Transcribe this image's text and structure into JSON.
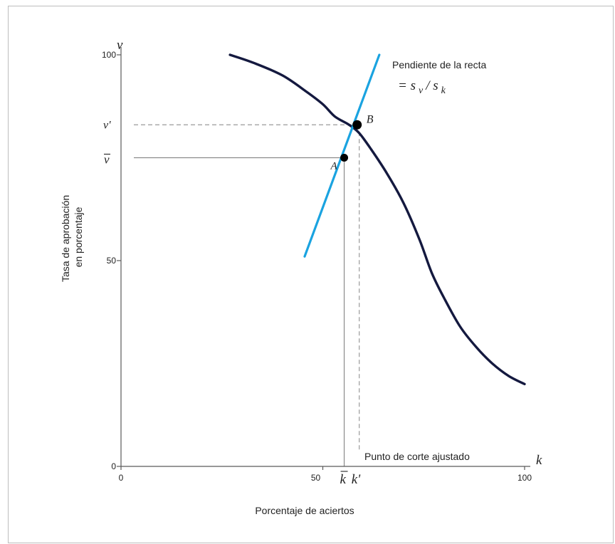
{
  "chart_data": {
    "type": "line",
    "xlabel": "Porcentaje de aciertos",
    "ylabel_line1": "Tasa de aprobación",
    "ylabel_line2": "en porcentaje",
    "x_axis_symbol": "k",
    "y_axis_symbol": "v",
    "xlim": [
      0,
      100
    ],
    "ylim": [
      0,
      100
    ],
    "x_ticks": [
      {
        "value": 0,
        "label": "0"
      },
      {
        "value": 50,
        "label": "50"
      },
      {
        "value": 100,
        "label": "100"
      }
    ],
    "y_ticks": [
      {
        "value": 0,
        "label": "0"
      },
      {
        "value": 50,
        "label": "50"
      },
      {
        "value": 100,
        "label": "100"
      }
    ],
    "series": [
      {
        "color": "#14193f",
        "points": [
          [
            27,
            100
          ],
          [
            33,
            98
          ],
          [
            40,
            95
          ],
          [
            46,
            91
          ],
          [
            50,
            88
          ],
          [
            53,
            85
          ],
          [
            56.5,
            83
          ],
          [
            59,
            81
          ],
          [
            62,
            77
          ],
          [
            66,
            71
          ],
          [
            70,
            64
          ],
          [
            74,
            55
          ],
          [
            77,
            47
          ],
          [
            80,
            41
          ],
          [
            84,
            34
          ],
          [
            88,
            29
          ],
          [
            92,
            25
          ],
          [
            96,
            22
          ],
          [
            100,
            20
          ]
        ]
      },
      {
        "color": "#1aa3e0",
        "points": [
          [
            45.5,
            51
          ],
          [
            64,
            100
          ]
        ]
      }
    ],
    "points": [
      {
        "name": "A",
        "x": 55.3,
        "y": 75
      },
      {
        "name": "B",
        "x": 58.5,
        "y": 83
      }
    ],
    "reference_lines": {
      "v_bar": {
        "value": 75,
        "label": "v"
      },
      "v_prime": {
        "value": 83,
        "label": "v'"
      },
      "k_bar": {
        "value": 55.3,
        "label": "k"
      },
      "k_prime": {
        "value": 58.5,
        "label": "k'"
      }
    },
    "annotations": {
      "slope_line1": "Pendiente de la recta",
      "slope_eq": "= s",
      "slope_sub1": "v",
      "slope_div": " / s",
      "slope_sub2": "k",
      "cutoff": "Punto de corte ajustado"
    }
  }
}
